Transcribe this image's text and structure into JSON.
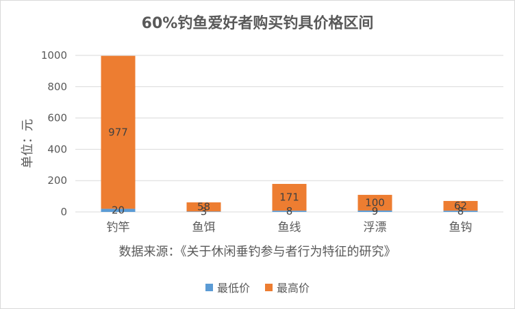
{
  "chart_data": {
    "type": "bar",
    "stacked": true,
    "title": "60%钓鱼爱好者购买钓具价格区间",
    "ylabel": "单位：元",
    "xlabel": "数据来源：《关于休闲垂钓参与者行为特征的研究》",
    "categories": [
      "钓竿",
      "鱼饵",
      "鱼线",
      "浮漂",
      "鱼钩"
    ],
    "series": [
      {
        "name": "最低价",
        "values": [
          20,
          3,
          8,
          9,
          8
        ],
        "color": "#5b9bd5"
      },
      {
        "name": "最高价",
        "values": [
          977,
          58,
          171,
          100,
          62
        ],
        "color": "#ed7d31"
      }
    ],
    "ylim": [
      0,
      1000
    ],
    "yticks": [
      0,
      200,
      400,
      600,
      800,
      1000
    ],
    "grid": true,
    "legend_position": "bottom"
  }
}
